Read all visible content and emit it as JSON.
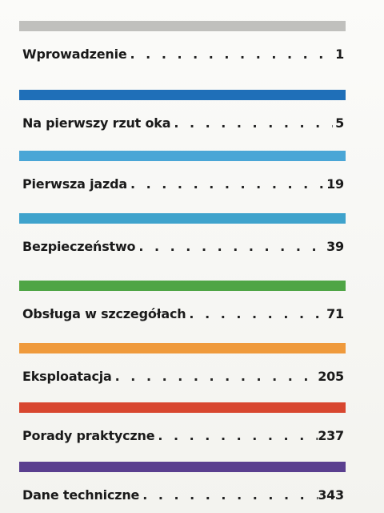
{
  "toc": {
    "entries": [
      {
        "title": "Wprowadzenie",
        "page": "1",
        "bar_color": "#b9b9b6"
      },
      {
        "title": "Na pierwszy rzut oka",
        "page": "5",
        "bar_color": "#1f6fb8"
      },
      {
        "title": "Pierwsza jazda",
        "page": "19",
        "bar_color": "#4aa6d6"
      },
      {
        "title": "Bezpieczeństwo",
        "page": "39",
        "bar_color": "#3fa3cc"
      },
      {
        "title": "Obsługa w szczegółach",
        "page": "71",
        "bar_color": "#4fa545"
      },
      {
        "title": "Eksploatacja",
        "page": "205",
        "bar_color": "#ef9a3c"
      },
      {
        "title": "Porady praktyczne",
        "page": "237",
        "bar_color": "#d8462f"
      },
      {
        "title": "Dane techniczne",
        "page": "343",
        "bar_color": "#5a3f8f"
      }
    ],
    "leader": ". . . . . . . . . . . . . . . . . . . . . . . . . . . . . . . . . . . . . . . . . . . ."
  }
}
